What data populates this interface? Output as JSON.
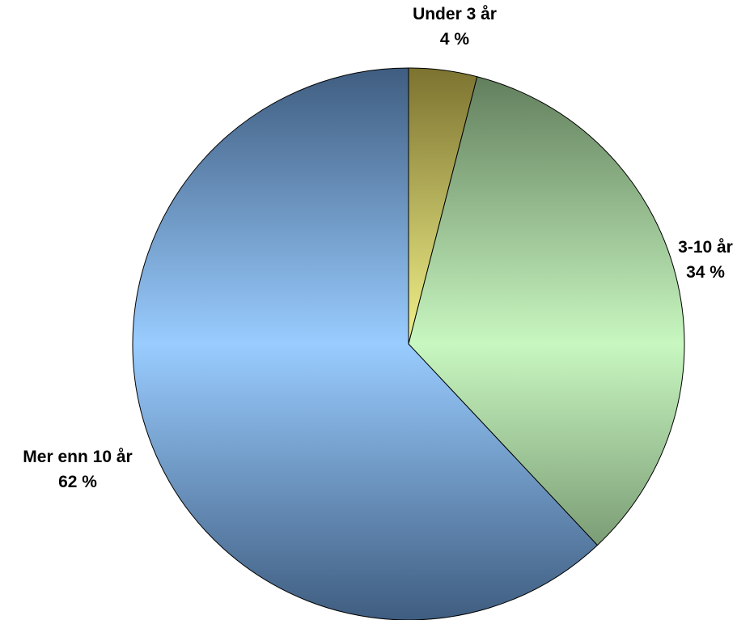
{
  "chart_data": {
    "type": "pie",
    "categories": [
      "Under 3 år",
      "3-10 år",
      "Mer enn 10 år"
    ],
    "values": [
      4,
      34,
      62
    ],
    "value_labels": [
      "4 %",
      "34 %",
      "62 %"
    ],
    "colors": [
      "#f2f28a",
      "#c8f7c0",
      "#99ccff"
    ],
    "dark_colors": [
      "#7c7330",
      "#5f7b5a",
      "#3f5d80"
    ],
    "start": "top",
    "direction": "clockwise",
    "title": "",
    "legend": "none"
  }
}
